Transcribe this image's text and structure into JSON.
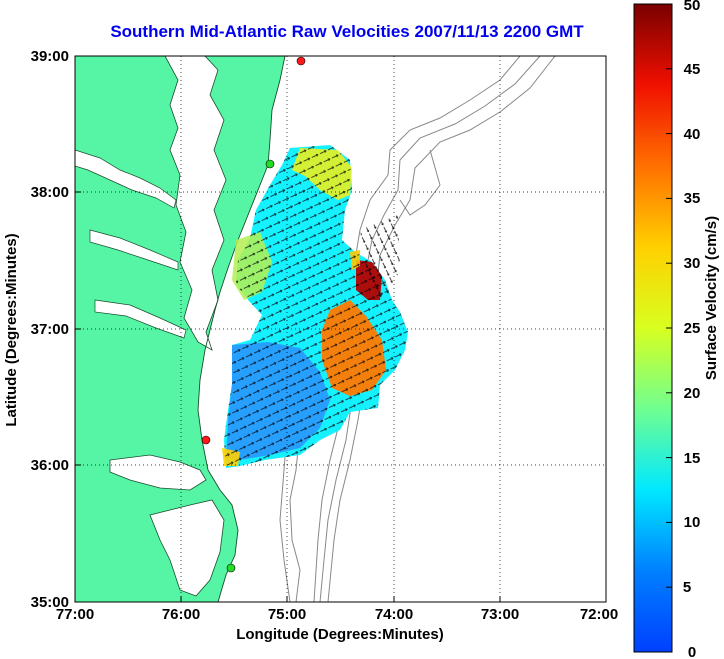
{
  "title": "Southern Mid-Atlantic Raw Velocities 2007/11/13 2200 GMT",
  "x_axis": {
    "label": "Longitude (Degrees:Minutes)",
    "ticks": [
      "77:00",
      "76:00",
      "75:00",
      "74:00",
      "73:00",
      "72:00"
    ]
  },
  "y_axis": {
    "label": "Latitude (Degrees:Minutes)",
    "ticks": [
      "39:00",
      "38:00",
      "37:00",
      "36:00",
      "35:00"
    ]
  },
  "colorbar": {
    "label": "Surface Velocity (cm/s)",
    "min": 0,
    "max": 50,
    "ticks": [
      "0",
      "5",
      "10",
      "15",
      "20",
      "25",
      "30",
      "35",
      "40",
      "45",
      "50"
    ],
    "colormap": "jet"
  },
  "colors": {
    "land": "#55f5a5",
    "title": "#0000ee",
    "isobath": "#888888",
    "station_red": "#ff1a1a",
    "station_green": "#22dd22"
  },
  "grid": "dotted",
  "stations": [
    {
      "color": "red",
      "lon": -74.87,
      "lat": 38.96
    },
    {
      "color": "green",
      "lon": -75.09,
      "lat": 38.22
    },
    {
      "color": "red",
      "lon": -75.67,
      "lat": 36.18
    },
    {
      "color": "green",
      "lon": -75.52,
      "lat": 35.27
    }
  ]
}
